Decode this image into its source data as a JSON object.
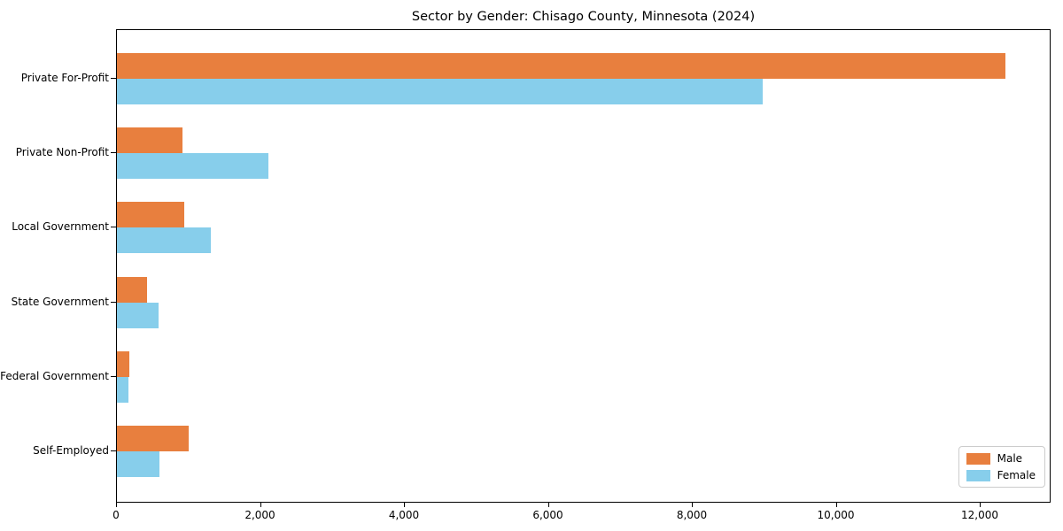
{
  "chart_data": {
    "type": "bar",
    "orientation": "horizontal",
    "title": "Sector by Gender: Chisago County, Minnesota (2024)",
    "categories": [
      "Private For-Profit",
      "Private Non-Profit",
      "Local Government",
      "State Government",
      "Federal Government",
      "Self-Employed"
    ],
    "series": [
      {
        "name": "Male",
        "color": "#e87f3e",
        "values": [
          12340,
          910,
          930,
          420,
          170,
          1000
        ]
      },
      {
        "name": "Female",
        "color": "#87ceeb",
        "values": [
          8970,
          2100,
          1310,
          580,
          160,
          590
        ]
      }
    ],
    "xlabel": "",
    "ylabel": "",
    "xlim": [
      0,
      12960
    ],
    "xticks": [
      0,
      2000,
      4000,
      6000,
      8000,
      10000,
      12000
    ],
    "xtick_labels": [
      "0",
      "2,000",
      "4,000",
      "6,000",
      "8,000",
      "10,000",
      "12,000"
    ],
    "grid": false,
    "legend_position": "lower right"
  }
}
